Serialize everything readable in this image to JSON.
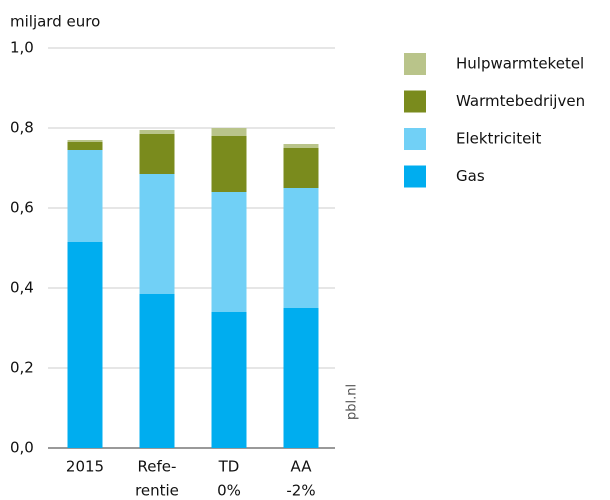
{
  "chart_data": {
    "type": "stacked_bar",
    "y_label": "miljard euro",
    "source": "pbl.nl",
    "categories": [
      [
        "2015"
      ],
      [
        "Refe-",
        "rentie"
      ],
      [
        "TD",
        "0%"
      ],
      [
        "AA",
        "-2%"
      ]
    ],
    "series": [
      {
        "name": "Gas",
        "color": "#00adef",
        "values": [
          0.515,
          0.385,
          0.34,
          0.35
        ]
      },
      {
        "name": "Elektriciteit",
        "color": "#71d0f6",
        "values": [
          0.23,
          0.3,
          0.3,
          0.3
        ]
      },
      {
        "name": "Warmtebedrijven",
        "color": "#7a8b1d",
        "values": [
          0.02,
          0.1,
          0.14,
          0.1
        ]
      },
      {
        "name": "Hulpwarmteketel",
        "color": "#b9c48a",
        "values": [
          0.005,
          0.01,
          0.02,
          0.01
        ]
      }
    ],
    "ylim": [
      0,
      1
    ],
    "yticks": [
      {
        "value": 0,
        "label": "0,0"
      },
      {
        "value": 0.2,
        "label": "0,2"
      },
      {
        "value": 0.4,
        "label": "0,4"
      },
      {
        "value": 0.6,
        "label": "0,6"
      },
      {
        "value": 0.8,
        "label": "0,8"
      },
      {
        "value": 1,
        "label": "1,0"
      }
    ],
    "grid": true
  }
}
